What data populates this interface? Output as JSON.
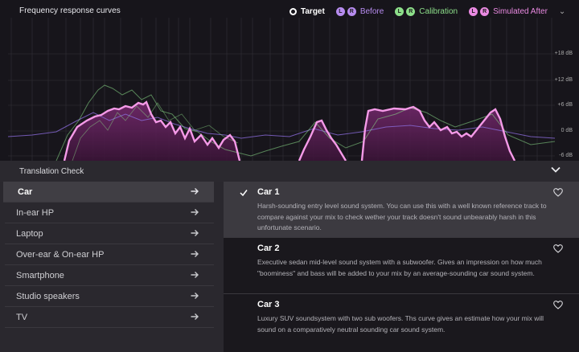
{
  "chart": {
    "title": "Frequency response curves",
    "legend": [
      {
        "kind": "ring",
        "label": "Target",
        "color": "#ffffff"
      },
      {
        "kind": "lr",
        "label": "Before",
        "color": "#b78cf0"
      },
      {
        "kind": "lr",
        "label": "Calibration",
        "color": "#8ddf8a"
      },
      {
        "kind": "lr",
        "label": "Simulated After",
        "color": "#ea8ae2"
      }
    ],
    "lr_left": "L",
    "lr_right": "R",
    "db_labels": [
      "+18 dB",
      "+12 dB",
      "+6 dB",
      "0 dB",
      "-6 dB"
    ],
    "colors": {
      "pink": "#f59ae8",
      "green": "#8ddf8a",
      "purple": "#8a6ad8",
      "fill": "#5b1f55"
    }
  },
  "translation_check": {
    "title": "Translation Check",
    "categories": [
      {
        "label": "Car",
        "active": true
      },
      {
        "label": "In-ear HP",
        "active": false
      },
      {
        "label": "Laptop",
        "active": false
      },
      {
        "label": "Over-ear & On-ear HP",
        "active": false
      },
      {
        "label": "Smartphone",
        "active": false
      },
      {
        "label": "Studio speakers",
        "active": false
      },
      {
        "label": "TV",
        "active": false
      }
    ],
    "profiles": [
      {
        "title": "Car 1",
        "selected": true,
        "description": "Harsh-sounding entry level sound system. You can use this with a well known reference track to compare against your mix to check wether your track doesn't sound unbearably harsh in this unfortunate scenario."
      },
      {
        "title": "Car 2",
        "selected": false,
        "description": "Executive sedan mid-level sound system with a subwoofer. Gives an impression on how much \"boominess\" and bass will be added to your mix by an average-sounding car sound system."
      },
      {
        "title": "Car 3",
        "selected": false,
        "description": "Luxury SUV soundsystem with two sub woofers. Ths curve gives an estimate how your mix will sound on a comparatively neutral sounding car sound system."
      }
    ]
  }
}
